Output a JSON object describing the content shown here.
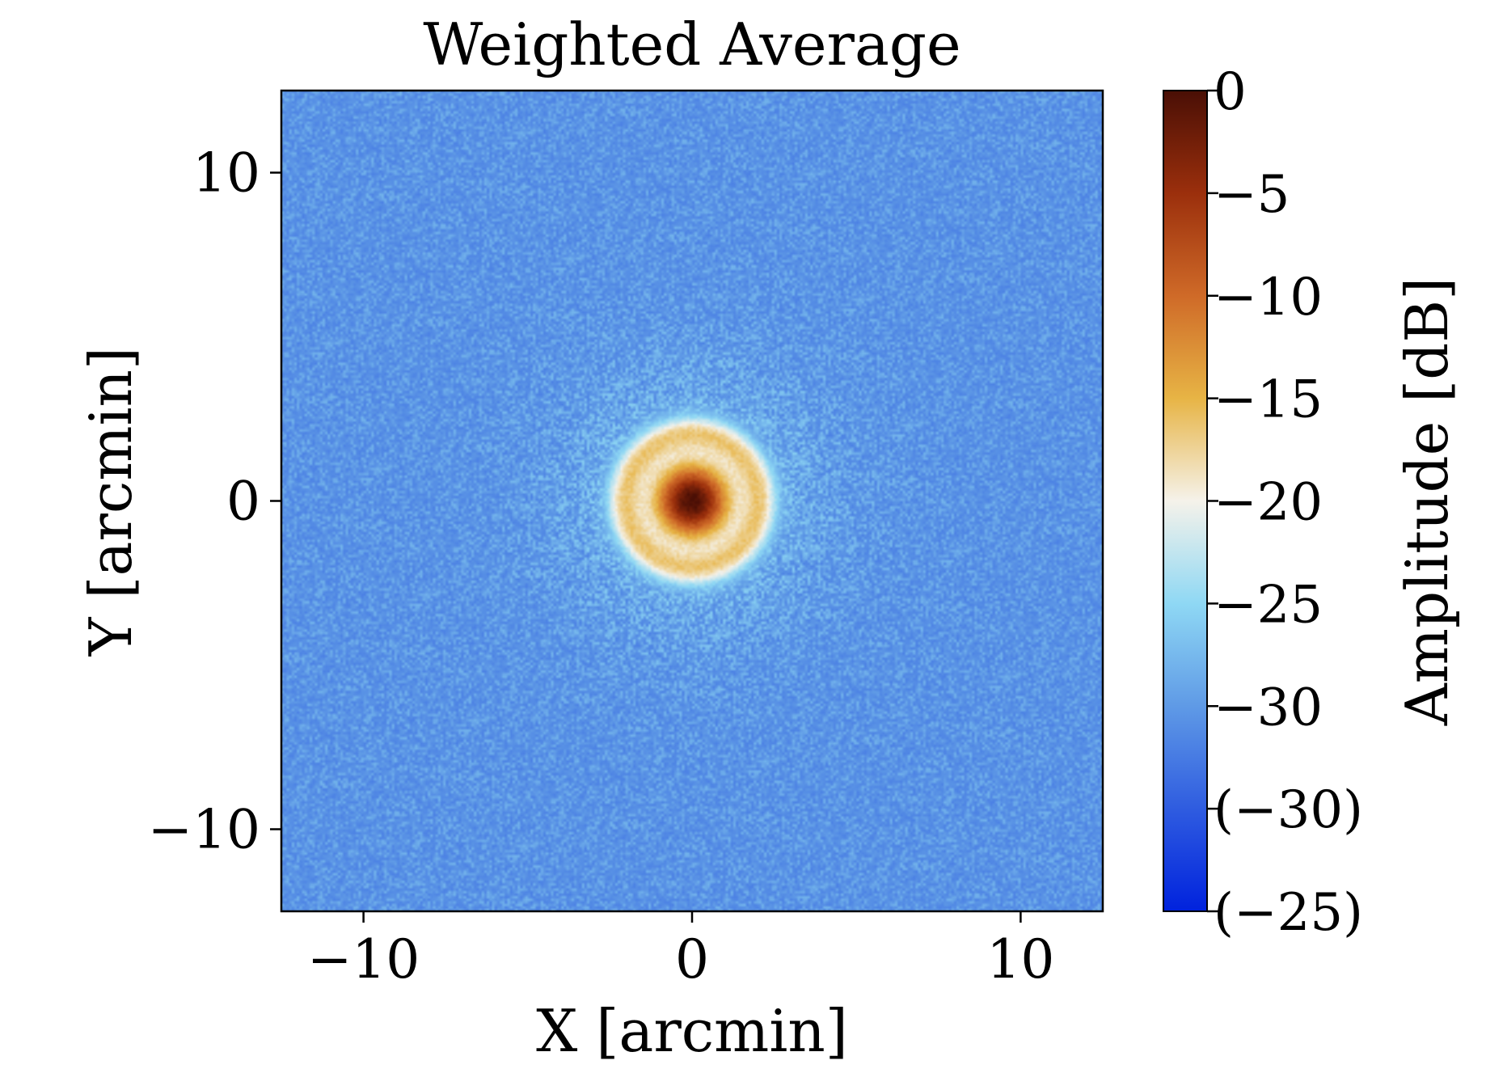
{
  "chart_data": {
    "type": "heatmap",
    "title": "Weighted Average",
    "xlabel": "X [arcmin]",
    "ylabel": "Y [arcmin]",
    "xlim": [
      -12.5,
      12.5
    ],
    "ylim": [
      -12.5,
      12.5
    ],
    "x_ticks": [
      {
        "value": -10,
        "label": "−10"
      },
      {
        "value": 0,
        "label": "0"
      },
      {
        "value": 10,
        "label": "10"
      }
    ],
    "y_ticks": [
      {
        "value": 10,
        "label": "10"
      },
      {
        "value": 0,
        "label": "0"
      },
      {
        "value": -10,
        "label": "−10"
      }
    ],
    "grid": false,
    "colorbar": {
      "label": "Amplitude [dB]",
      "ticks": [
        {
          "label": "0",
          "fraction": 1.0
        },
        {
          "label": "−5",
          "fraction": 0.875
        },
        {
          "label": "−10",
          "fraction": 0.75
        },
        {
          "label": "−15",
          "fraction": 0.625
        },
        {
          "label": "−20",
          "fraction": 0.5
        },
        {
          "label": "−25",
          "fraction": 0.375
        },
        {
          "label": "−30",
          "fraction": 0.25
        },
        {
          "label": "(−30)",
          "fraction": 0.125
        },
        {
          "label": "(−25)",
          "fraction": 0.0
        }
      ],
      "colors": [
        "#0022dd",
        "#2f5ce0",
        "#5f9ae6",
        "#8fd8f4",
        "#f5f2ea",
        "#e7b445",
        "#cf6a28",
        "#9b2f0c",
        "#4a0f05"
      ]
    },
    "beam": {
      "center": [
        0,
        0
      ],
      "core_radius_arcmin": 1.4,
      "core_peak_db": 0,
      "ring_radius_arcmin": 2.1,
      "ring_level_db": -18,
      "halo_radius_arcmin": 5,
      "background_level_db": -30
    }
  }
}
